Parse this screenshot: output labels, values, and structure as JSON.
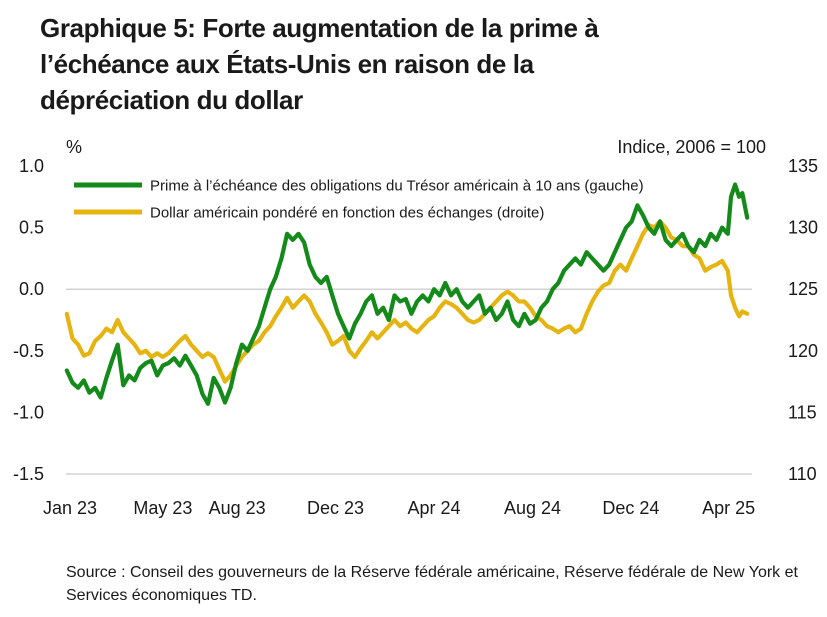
{
  "title_lines": [
    "Graphique 5: Forte augmentation de la prime à",
    "l’échéance aux États-Unis en raison de la",
    "dépréciation du dollar"
  ],
  "source_text": "Source : Conseil des gouverneurs de la Réserve fédérale américaine, Réserve fédérale de New York et Services économiques TD.",
  "colors": {
    "green": "#138a19",
    "gold": "#e6b411",
    "axis": "#d3d3d3",
    "text": "#1a1a1a"
  },
  "chart_data": {
    "type": "line",
    "left_axis_label": "%",
    "right_axis_label": "Indice, 2006 = 100",
    "y_left": {
      "min": -1.5,
      "max": 1.0,
      "ticks": [
        1.0,
        0.5,
        0.0,
        -0.5,
        -1.0,
        -1.5
      ],
      "tick_labels": [
        "1.0",
        "0.5",
        "0.0",
        "-0.5",
        "-1.0",
        "-1.5"
      ]
    },
    "y_right": {
      "min": 110,
      "max": 135,
      "ticks": [
        135,
        130,
        125,
        120,
        115,
        110
      ],
      "tick_labels": [
        "135",
        "130",
        "125",
        "120",
        "115",
        "110"
      ]
    },
    "x_range": [
      "2023-01-01",
      "2025-04-30"
    ],
    "x_ticks": [
      {
        "date": "2023-01-01",
        "label": "Jan 23"
      },
      {
        "date": "2023-05-01",
        "label": "May 23"
      },
      {
        "date": "2023-08-01",
        "label": "Aug 23"
      },
      {
        "date": "2023-12-01",
        "label": "Dec 23"
      },
      {
        "date": "2024-04-01",
        "label": "Apr 24"
      },
      {
        "date": "2024-08-01",
        "label": "Aug 24"
      },
      {
        "date": "2024-12-01",
        "label": "Dec 24"
      },
      {
        "date": "2025-04-01",
        "label": "Apr 25"
      }
    ],
    "grid": false,
    "legend_position": "top-left",
    "series": [
      {
        "name": "Prime à l’échéance des obligations du Trésor américain à 10 ans (gauche)",
        "axis": "left",
        "color": "#138a19",
        "points": [
          [
            "2023-01-02",
            -0.66
          ],
          [
            "2023-01-09",
            -0.76
          ],
          [
            "2023-01-16",
            -0.8
          ],
          [
            "2023-01-23",
            -0.74
          ],
          [
            "2023-01-30",
            -0.84
          ],
          [
            "2023-02-06",
            -0.8
          ],
          [
            "2023-02-13",
            -0.88
          ],
          [
            "2023-02-20",
            -0.72
          ],
          [
            "2023-02-27",
            -0.58
          ],
          [
            "2023-03-06",
            -0.45
          ],
          [
            "2023-03-13",
            -0.78
          ],
          [
            "2023-03-20",
            -0.7
          ],
          [
            "2023-03-27",
            -0.74
          ],
          [
            "2023-04-03",
            -0.64
          ],
          [
            "2023-04-10",
            -0.6
          ],
          [
            "2023-04-17",
            -0.58
          ],
          [
            "2023-04-24",
            -0.7
          ],
          [
            "2023-05-01",
            -0.62
          ],
          [
            "2023-05-08",
            -0.6
          ],
          [
            "2023-05-15",
            -0.56
          ],
          [
            "2023-05-22",
            -0.62
          ],
          [
            "2023-05-29",
            -0.54
          ],
          [
            "2023-06-05",
            -0.62
          ],
          [
            "2023-06-12",
            -0.7
          ],
          [
            "2023-06-19",
            -0.85
          ],
          [
            "2023-06-26",
            -0.93
          ],
          [
            "2023-07-03",
            -0.72
          ],
          [
            "2023-07-10",
            -0.8
          ],
          [
            "2023-07-17",
            -0.92
          ],
          [
            "2023-07-24",
            -0.8
          ],
          [
            "2023-07-31",
            -0.6
          ],
          [
            "2023-08-07",
            -0.45
          ],
          [
            "2023-08-14",
            -0.5
          ],
          [
            "2023-08-21",
            -0.4
          ],
          [
            "2023-08-28",
            -0.3
          ],
          [
            "2023-09-04",
            -0.15
          ],
          [
            "2023-09-11",
            0.0
          ],
          [
            "2023-09-18",
            0.1
          ],
          [
            "2023-09-25",
            0.25
          ],
          [
            "2023-10-02",
            0.45
          ],
          [
            "2023-10-09",
            0.4
          ],
          [
            "2023-10-16",
            0.45
          ],
          [
            "2023-10-23",
            0.38
          ],
          [
            "2023-10-30",
            0.2
          ],
          [
            "2023-11-06",
            0.1
          ],
          [
            "2023-11-13",
            0.05
          ],
          [
            "2023-11-20",
            0.1
          ],
          [
            "2023-11-27",
            -0.05
          ],
          [
            "2023-12-04",
            -0.2
          ],
          [
            "2023-12-11",
            -0.3
          ],
          [
            "2023-12-18",
            -0.4
          ],
          [
            "2023-12-25",
            -0.28
          ],
          [
            "2024-01-01",
            -0.2
          ],
          [
            "2024-01-08",
            -0.1
          ],
          [
            "2024-01-15",
            -0.05
          ],
          [
            "2024-01-22",
            -0.2
          ],
          [
            "2024-01-29",
            -0.15
          ],
          [
            "2024-02-05",
            -0.25
          ],
          [
            "2024-02-12",
            -0.05
          ],
          [
            "2024-02-19",
            -0.1
          ],
          [
            "2024-02-26",
            -0.08
          ],
          [
            "2024-03-04",
            -0.2
          ],
          [
            "2024-03-11",
            -0.1
          ],
          [
            "2024-03-18",
            -0.05
          ],
          [
            "2024-03-25",
            -0.1
          ],
          [
            "2024-04-01",
            0.0
          ],
          [
            "2024-04-08",
            -0.05
          ],
          [
            "2024-04-15",
            0.05
          ],
          [
            "2024-04-22",
            -0.05
          ],
          [
            "2024-04-29",
            0.0
          ],
          [
            "2024-05-06",
            -0.1
          ],
          [
            "2024-05-13",
            -0.15
          ],
          [
            "2024-05-20",
            -0.1
          ],
          [
            "2024-05-27",
            -0.05
          ],
          [
            "2024-06-03",
            -0.2
          ],
          [
            "2024-06-10",
            -0.15
          ],
          [
            "2024-06-17",
            -0.25
          ],
          [
            "2024-06-24",
            -0.2
          ],
          [
            "2024-07-01",
            -0.1
          ],
          [
            "2024-07-08",
            -0.25
          ],
          [
            "2024-07-15",
            -0.3
          ],
          [
            "2024-07-22",
            -0.2
          ],
          [
            "2024-07-29",
            -0.28
          ],
          [
            "2024-08-05",
            -0.25
          ],
          [
            "2024-08-12",
            -0.15
          ],
          [
            "2024-08-19",
            -0.1
          ],
          [
            "2024-08-26",
            0.0
          ],
          [
            "2024-09-02",
            0.05
          ],
          [
            "2024-09-09",
            0.15
          ],
          [
            "2024-09-16",
            0.2
          ],
          [
            "2024-09-23",
            0.25
          ],
          [
            "2024-09-30",
            0.2
          ],
          [
            "2024-10-07",
            0.3
          ],
          [
            "2024-10-14",
            0.25
          ],
          [
            "2024-10-21",
            0.2
          ],
          [
            "2024-10-28",
            0.15
          ],
          [
            "2024-11-04",
            0.2
          ],
          [
            "2024-11-11",
            0.3
          ],
          [
            "2024-11-18",
            0.4
          ],
          [
            "2024-11-25",
            0.5
          ],
          [
            "2024-12-02",
            0.55
          ],
          [
            "2024-12-09",
            0.68
          ],
          [
            "2024-12-16",
            0.6
          ],
          [
            "2024-12-23",
            0.5
          ],
          [
            "2024-12-30",
            0.45
          ],
          [
            "2025-01-06",
            0.55
          ],
          [
            "2025-01-13",
            0.4
          ],
          [
            "2025-01-20",
            0.35
          ],
          [
            "2025-01-27",
            0.4
          ],
          [
            "2025-02-03",
            0.45
          ],
          [
            "2025-02-10",
            0.35
          ],
          [
            "2025-02-17",
            0.3
          ],
          [
            "2025-02-24",
            0.4
          ],
          [
            "2025-03-03",
            0.35
          ],
          [
            "2025-03-10",
            0.45
          ],
          [
            "2025-03-17",
            0.4
          ],
          [
            "2025-03-24",
            0.5
          ],
          [
            "2025-03-31",
            0.45
          ],
          [
            "2025-04-04",
            0.75
          ],
          [
            "2025-04-09",
            0.85
          ],
          [
            "2025-04-14",
            0.75
          ],
          [
            "2025-04-18",
            0.78
          ],
          [
            "2025-04-24",
            0.58
          ]
        ]
      },
      {
        "name": "Dollar américain pondéré en fonction des échanges (droite)",
        "axis": "right",
        "color": "#e6b411",
        "points": [
          [
            "2023-01-02",
            123.0
          ],
          [
            "2023-01-09",
            121.0
          ],
          [
            "2023-01-16",
            120.5
          ],
          [
            "2023-01-23",
            119.6
          ],
          [
            "2023-01-30",
            119.8
          ],
          [
            "2023-02-06",
            120.8
          ],
          [
            "2023-02-13",
            121.2
          ],
          [
            "2023-02-20",
            121.8
          ],
          [
            "2023-02-27",
            121.5
          ],
          [
            "2023-03-06",
            122.5
          ],
          [
            "2023-03-13",
            121.5
          ],
          [
            "2023-03-20",
            121.0
          ],
          [
            "2023-03-27",
            120.5
          ],
          [
            "2023-04-03",
            119.8
          ],
          [
            "2023-04-10",
            120.0
          ],
          [
            "2023-04-17",
            119.5
          ],
          [
            "2023-04-24",
            119.8
          ],
          [
            "2023-05-01",
            119.5
          ],
          [
            "2023-05-08",
            119.8
          ],
          [
            "2023-05-15",
            120.3
          ],
          [
            "2023-05-22",
            120.8
          ],
          [
            "2023-05-29",
            121.2
          ],
          [
            "2023-06-05",
            120.5
          ],
          [
            "2023-06-12",
            120.0
          ],
          [
            "2023-06-19",
            119.5
          ],
          [
            "2023-06-26",
            119.8
          ],
          [
            "2023-07-03",
            119.5
          ],
          [
            "2023-07-10",
            118.5
          ],
          [
            "2023-07-17",
            117.5
          ],
          [
            "2023-07-24",
            118.0
          ],
          [
            "2023-07-31",
            118.8
          ],
          [
            "2023-08-07",
            119.5
          ],
          [
            "2023-08-14",
            120.0
          ],
          [
            "2023-08-21",
            120.5
          ],
          [
            "2023-08-28",
            120.8
          ],
          [
            "2023-09-04",
            121.5
          ],
          [
            "2023-09-11",
            122.0
          ],
          [
            "2023-09-18",
            122.8
          ],
          [
            "2023-09-25",
            123.5
          ],
          [
            "2023-10-02",
            124.3
          ],
          [
            "2023-10-09",
            123.5
          ],
          [
            "2023-10-16",
            124.0
          ],
          [
            "2023-10-23",
            124.5
          ],
          [
            "2023-10-30",
            124.0
          ],
          [
            "2023-11-06",
            123.0
          ],
          [
            "2023-11-13",
            122.3
          ],
          [
            "2023-11-20",
            121.5
          ],
          [
            "2023-11-27",
            120.5
          ],
          [
            "2023-12-04",
            120.8
          ],
          [
            "2023-12-11",
            121.2
          ],
          [
            "2023-12-18",
            120.0
          ],
          [
            "2023-12-25",
            119.5
          ],
          [
            "2024-01-01",
            120.2
          ],
          [
            "2024-01-08",
            120.8
          ],
          [
            "2024-01-15",
            121.5
          ],
          [
            "2024-01-22",
            121.0
          ],
          [
            "2024-01-29",
            121.5
          ],
          [
            "2024-02-05",
            122.0
          ],
          [
            "2024-02-12",
            122.5
          ],
          [
            "2024-02-19",
            122.0
          ],
          [
            "2024-02-26",
            122.3
          ],
          [
            "2024-03-04",
            121.8
          ],
          [
            "2024-03-11",
            121.5
          ],
          [
            "2024-03-18",
            122.0
          ],
          [
            "2024-03-25",
            122.5
          ],
          [
            "2024-04-01",
            122.8
          ],
          [
            "2024-04-08",
            123.5
          ],
          [
            "2024-04-15",
            124.0
          ],
          [
            "2024-04-22",
            123.8
          ],
          [
            "2024-04-29",
            123.5
          ],
          [
            "2024-05-06",
            123.0
          ],
          [
            "2024-05-13",
            122.5
          ],
          [
            "2024-05-20",
            122.3
          ],
          [
            "2024-05-27",
            122.5
          ],
          [
            "2024-06-03",
            123.0
          ],
          [
            "2024-06-10",
            123.5
          ],
          [
            "2024-06-17",
            124.0
          ],
          [
            "2024-06-24",
            124.5
          ],
          [
            "2024-07-01",
            124.8
          ],
          [
            "2024-07-08",
            124.5
          ],
          [
            "2024-07-15",
            124.0
          ],
          [
            "2024-07-22",
            124.0
          ],
          [
            "2024-07-29",
            123.5
          ],
          [
            "2024-08-05",
            122.8
          ],
          [
            "2024-08-12",
            122.5
          ],
          [
            "2024-08-19",
            122.0
          ],
          [
            "2024-08-26",
            121.8
          ],
          [
            "2024-09-02",
            121.5
          ],
          [
            "2024-09-09",
            121.8
          ],
          [
            "2024-09-16",
            122.0
          ],
          [
            "2024-09-23",
            121.5
          ],
          [
            "2024-09-30",
            121.8
          ],
          [
            "2024-10-07",
            123.0
          ],
          [
            "2024-10-14",
            124.0
          ],
          [
            "2024-10-21",
            124.8
          ],
          [
            "2024-10-28",
            125.3
          ],
          [
            "2024-11-04",
            125.5
          ],
          [
            "2024-11-11",
            126.5
          ],
          [
            "2024-11-18",
            127.0
          ],
          [
            "2024-11-25",
            126.5
          ],
          [
            "2024-12-02",
            127.5
          ],
          [
            "2024-12-09",
            128.5
          ],
          [
            "2024-12-16",
            129.5
          ],
          [
            "2024-12-23",
            130.2
          ],
          [
            "2024-12-30",
            130.0
          ],
          [
            "2025-01-06",
            130.5
          ],
          [
            "2025-01-13",
            130.0
          ],
          [
            "2025-01-20",
            129.2
          ],
          [
            "2025-01-27",
            129.0
          ],
          [
            "2025-02-03",
            128.5
          ],
          [
            "2025-02-10",
            128.5
          ],
          [
            "2025-02-17",
            127.8
          ],
          [
            "2025-02-24",
            127.5
          ],
          [
            "2025-03-03",
            126.5
          ],
          [
            "2025-03-10",
            126.8
          ],
          [
            "2025-03-17",
            127.0
          ],
          [
            "2025-03-24",
            127.3
          ],
          [
            "2025-03-31",
            126.5
          ],
          [
            "2025-04-04",
            124.5
          ],
          [
            "2025-04-09",
            123.5
          ],
          [
            "2025-04-14",
            122.8
          ],
          [
            "2025-04-18",
            123.2
          ],
          [
            "2025-04-24",
            123.0
          ]
        ]
      }
    ]
  }
}
